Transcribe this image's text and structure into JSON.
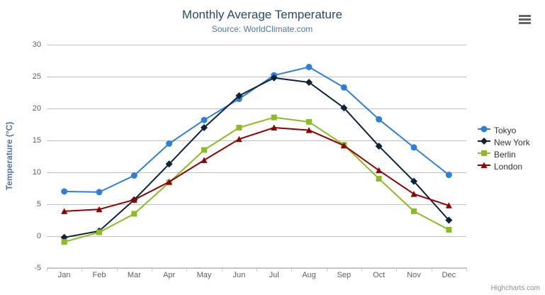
{
  "chart": {
    "credit": "Highcharts.com",
    "context_menu_icon": "hamburger-icon"
  },
  "chart_data": {
    "type": "line",
    "title": "Monthly Average Temperature",
    "subtitle": "Source: WorldClimate.com",
    "xlabel": "",
    "ylabel": "Temperature (°C)",
    "ylim": [
      -5,
      30
    ],
    "yticks": [
      -5,
      0,
      5,
      10,
      15,
      20,
      25,
      30
    ],
    "grid": true,
    "legend_position": "right",
    "categories": [
      "Jan",
      "Feb",
      "Mar",
      "Apr",
      "May",
      "Jun",
      "Jul",
      "Aug",
      "Sep",
      "Oct",
      "Nov",
      "Dec"
    ],
    "series": [
      {
        "name": "Tokyo",
        "color": "#2f7ed8",
        "marker": "circle",
        "values": [
          7.0,
          6.9,
          9.5,
          14.5,
          18.2,
          21.5,
          25.2,
          26.5,
          23.3,
          18.3,
          13.9,
          9.6
        ]
      },
      {
        "name": "New York",
        "color": "#0d233a",
        "marker": "diamond",
        "values": [
          -0.2,
          0.8,
          5.7,
          11.3,
          17.0,
          22.0,
          24.8,
          24.1,
          20.1,
          14.1,
          8.6,
          2.5
        ]
      },
      {
        "name": "Berlin",
        "color": "#8bbc21",
        "marker": "square",
        "values": [
          -0.9,
          0.6,
          3.5,
          8.4,
          13.5,
          17.0,
          18.6,
          17.9,
          14.3,
          9.0,
          3.9,
          1.0
        ]
      },
      {
        "name": "London",
        "color": "#910000",
        "marker": "triangle",
        "values": [
          3.9,
          4.2,
          5.7,
          8.5,
          11.9,
          15.2,
          17.0,
          16.6,
          14.2,
          10.3,
          6.6,
          4.8
        ]
      }
    ],
    "colors": {
      "grid_line": "#c0c0c0",
      "axis_line": "#c0d0e0",
      "axis_label": "#606060",
      "title": "#274b6d",
      "subtitle": "#4d759e",
      "legend_text": "#333333"
    }
  }
}
